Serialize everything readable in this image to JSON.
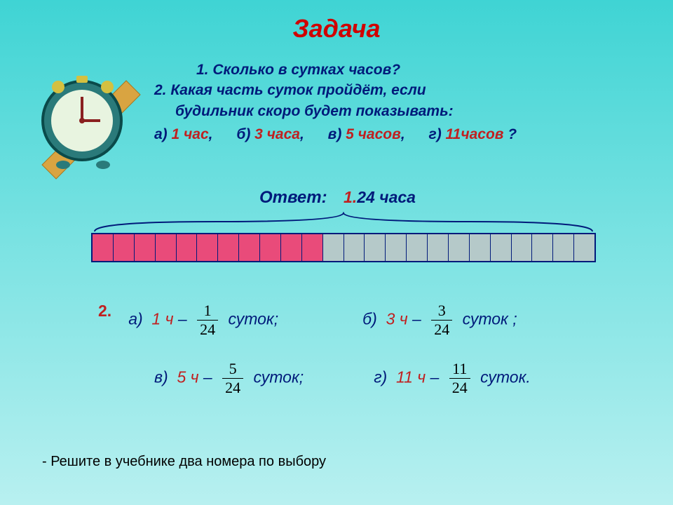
{
  "title": "Задача",
  "question1_num": "1.",
  "question1": " Сколько в сутках часов?",
  "question2_num": "2.",
  "question2_line1": " Какая часть суток пройдёт, если",
  "question2_line2": "будильник  скоро будет показывать:",
  "opt_a_label": "а) ",
  "opt_a_val": "1 час",
  "opt_b_label": "б) ",
  "opt_b_val": "3 часа",
  "opt_v_label": "в) ",
  "opt_v_val": "5 часов",
  "opt_g_label": "г) ",
  "opt_g_val": "11часов ",
  "qmark": "?",
  "comma": ",",
  "answer_label": "Ответ:",
  "answer1_num": "1.",
  "answer1_val": "24 часа",
  "bar": {
    "total_cells": 24,
    "pink_cells": 11,
    "pink_color": "#e94b7a",
    "grey_color": "#b5c9c9",
    "border_color": "#001a7a"
  },
  "ans2_num": "2.",
  "a": {
    "letter": "а)",
    "val": "1 ч",
    "dash": " – ",
    "frac_top": "1",
    "frac_bot": "24",
    "suffix": "  суток;"
  },
  "b": {
    "letter": "б)",
    "val": "3 ч",
    "dash": " – ",
    "frac_top": "3",
    "frac_bot": "24",
    "suffix": "  суток ;"
  },
  "v": {
    "letter": "в)",
    "val": "5 ч",
    "dash": " – ",
    "frac_top": "5",
    "frac_bot": "24",
    "suffix": "  суток;"
  },
  "g": {
    "letter": "г)",
    "val": "11 ч",
    "dash": " – ",
    "frac_top": "11",
    "frac_bot": "24",
    "suffix": "  суток."
  },
  "footer": "- Решите в учебнике два номера по выбору",
  "colors": {
    "bg_top": "#3fd4d4",
    "title": "#d00000",
    "body_text": "#001a7a",
    "red_text": "#c02020"
  }
}
